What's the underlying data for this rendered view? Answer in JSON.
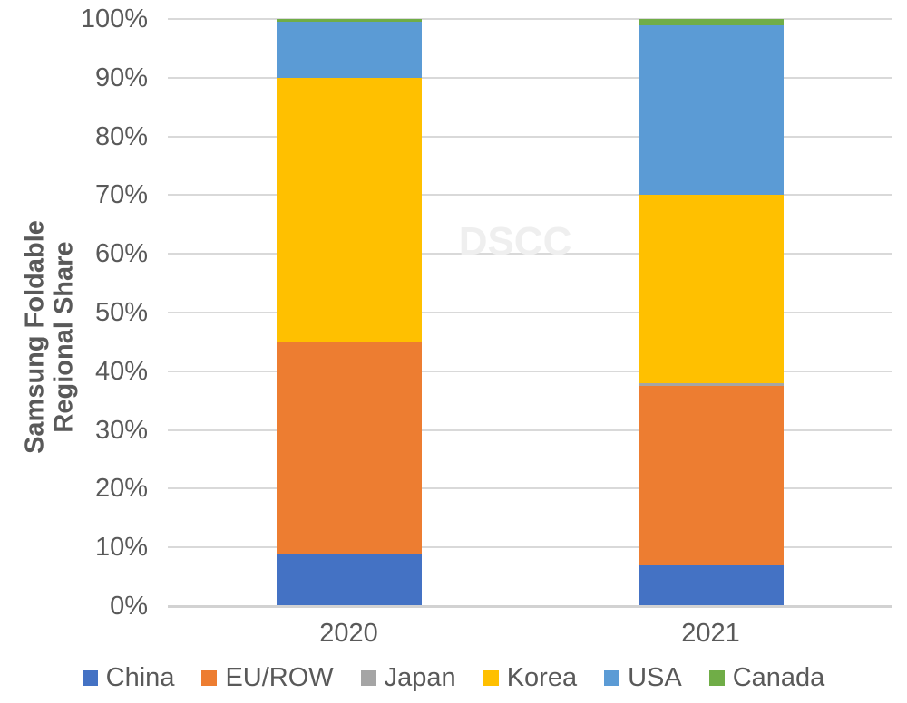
{
  "chart_data": {
    "type": "bar",
    "stacked": true,
    "title": "",
    "ylabel": "Samsung Foldable Regional Share",
    "ylabel_lines": [
      "Samsung Foldable",
      "Regional Share"
    ],
    "xlabel": "",
    "categories": [
      "2020",
      "2021"
    ],
    "series": [
      {
        "name": "China",
        "color": "#4472C4",
        "values": [
          9.0,
          7.0
        ]
      },
      {
        "name": "EU/ROW",
        "color": "#ED7D31",
        "values": [
          36.0,
          30.5
        ]
      },
      {
        "name": "Japan",
        "color": "#A5A5A5",
        "values": [
          0.0,
          0.5
        ]
      },
      {
        "name": "Korea",
        "color": "#FFC000",
        "values": [
          45.0,
          32.0
        ]
      },
      {
        "name": "USA",
        "color": "#5B9BD5",
        "values": [
          9.5,
          29.0
        ]
      },
      {
        "name": "Canada",
        "color": "#70AD47",
        "values": [
          0.5,
          1.0
        ]
      }
    ],
    "ylim": [
      0,
      100
    ],
    "y_ticks": [
      "100%",
      "90%",
      "80%",
      "70%",
      "60%",
      "50%",
      "40%",
      "30%",
      "20%",
      "10%",
      "0%"
    ],
    "grid": true,
    "legend_position": "bottom",
    "watermark": "DSCC",
    "colors": {
      "text": "#595959",
      "gridline": "#D9D9D9",
      "watermark": "#EFEFEF"
    }
  }
}
